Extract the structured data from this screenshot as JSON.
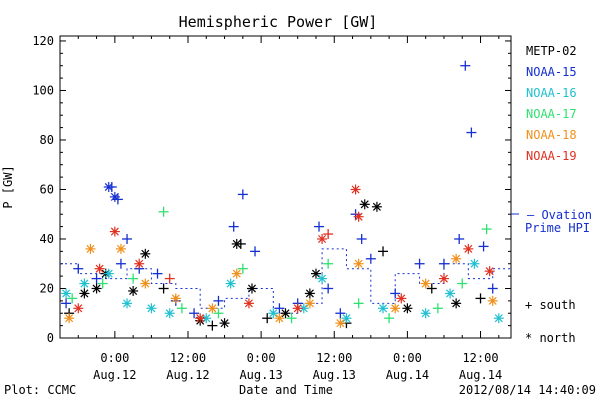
{
  "chart_data": {
    "type": "scatter",
    "title": "Hemispheric Power [GW]",
    "ylabel": "P [GW]",
    "xlabel": "Date and Time",
    "ylim": [
      0,
      122
    ],
    "xlim": [
      "2012-08-11T15:00",
      "2012-08-14T17:00"
    ],
    "y_ticks": [
      0,
      20,
      40,
      60,
      80,
      100,
      120
    ],
    "x_ticks": [
      {
        "time": "2012-08-12T00:00",
        "line1": "0:00",
        "line2": "Aug.12"
      },
      {
        "time": "2012-08-12T12:00",
        "line1": "12:00",
        "line2": "Aug.12"
      },
      {
        "time": "2012-08-13T00:00",
        "line1": "0:00",
        "line2": "Aug.13"
      },
      {
        "time": "2012-08-13T12:00",
        "line1": "12:00",
        "line2": "Aug.13"
      },
      {
        "time": "2012-08-14T00:00",
        "line1": "0:00",
        "line2": "Aug.14"
      },
      {
        "time": "2012-08-14T12:00",
        "line1": "12:00",
        "line2": "Aug.14"
      }
    ],
    "grid": false,
    "legend_position": "right",
    "series": [
      {
        "name": "METP-02",
        "color": "#000000",
        "points": [
          {
            "x": "2012-08-11T16:30",
            "y": 10,
            "m": "+"
          },
          {
            "x": "2012-08-11T19:00",
            "y": 18,
            "m": "*"
          },
          {
            "x": "2012-08-11T21:00",
            "y": 20,
            "m": "*"
          },
          {
            "x": "2012-08-11T22:30",
            "y": 26,
            "m": "*"
          },
          {
            "x": "2012-08-12T03:00",
            "y": 19,
            "m": "*"
          },
          {
            "x": "2012-08-12T05:00",
            "y": 34,
            "m": "*"
          },
          {
            "x": "2012-08-12T08:00",
            "y": 20,
            "m": "+"
          },
          {
            "x": "2012-08-12T14:00",
            "y": 7,
            "m": "*"
          },
          {
            "x": "2012-08-12T16:00",
            "y": 5,
            "m": "+"
          },
          {
            "x": "2012-08-12T18:00",
            "y": 6,
            "m": "*"
          },
          {
            "x": "2012-08-12T20:00",
            "y": 38,
            "m": "*"
          },
          {
            "x": "2012-08-12T20:40",
            "y": 38,
            "m": "+"
          },
          {
            "x": "2012-08-12T22:30",
            "y": 20,
            "m": "*"
          },
          {
            "x": "2012-08-13T01:00",
            "y": 8,
            "m": "+"
          },
          {
            "x": "2012-08-13T04:00",
            "y": 10,
            "m": "*"
          },
          {
            "x": "2012-08-13T08:00",
            "y": 18,
            "m": "*"
          },
          {
            "x": "2012-08-13T09:00",
            "y": 26,
            "m": "*"
          },
          {
            "x": "2012-08-13T14:00",
            "y": 6,
            "m": "+"
          },
          {
            "x": "2012-08-13T17:00",
            "y": 54,
            "m": "*"
          },
          {
            "x": "2012-08-13T19:00",
            "y": 53,
            "m": "*"
          },
          {
            "x": "2012-08-13T20:00",
            "y": 35,
            "m": "+"
          },
          {
            "x": "2012-08-14T00:00",
            "y": 12,
            "m": "*"
          },
          {
            "x": "2012-08-14T04:00",
            "y": 20,
            "m": "+"
          },
          {
            "x": "2012-08-14T08:00",
            "y": 14,
            "m": "*"
          },
          {
            "x": "2012-08-14T12:00",
            "y": 16,
            "m": "+"
          }
        ]
      },
      {
        "name": "NOAA-15",
        "color": "#1530d0",
        "points": [
          {
            "x": "2012-08-11T16:00",
            "y": 14,
            "m": "+"
          },
          {
            "x": "2012-08-11T18:00",
            "y": 28,
            "m": "+"
          },
          {
            "x": "2012-08-11T21:00",
            "y": 24,
            "m": "+"
          },
          {
            "x": "2012-08-11T23:00",
            "y": 61,
            "m": "*"
          },
          {
            "x": "2012-08-11T23:30",
            "y": 61,
            "m": "+"
          },
          {
            "x": "2012-08-12T00:00",
            "y": 57,
            "m": "*"
          },
          {
            "x": "2012-08-12T00:30",
            "y": 56,
            "m": "+"
          },
          {
            "x": "2012-08-12T01:00",
            "y": 30,
            "m": "+"
          },
          {
            "x": "2012-08-12T02:00",
            "y": 40,
            "m": "+"
          },
          {
            "x": "2012-08-12T04:00",
            "y": 28,
            "m": "+"
          },
          {
            "x": "2012-08-12T07:00",
            "y": 26,
            "m": "+"
          },
          {
            "x": "2012-08-12T10:00",
            "y": 15,
            "m": "+"
          },
          {
            "x": "2012-08-12T13:00",
            "y": 10,
            "m": "+"
          },
          {
            "x": "2012-08-12T17:00",
            "y": 15,
            "m": "+"
          },
          {
            "x": "2012-08-12T19:30",
            "y": 45,
            "m": "+"
          },
          {
            "x": "2012-08-12T21:00",
            "y": 58,
            "m": "+"
          },
          {
            "x": "2012-08-12T23:00",
            "y": 35,
            "m": "+"
          },
          {
            "x": "2012-08-13T03:00",
            "y": 12,
            "m": "+"
          },
          {
            "x": "2012-08-13T06:00",
            "y": 14,
            "m": "+"
          },
          {
            "x": "2012-08-13T09:30",
            "y": 45,
            "m": "+"
          },
          {
            "x": "2012-08-13T11:00",
            "y": 20,
            "m": "+"
          },
          {
            "x": "2012-08-13T13:00",
            "y": 10,
            "m": "+"
          },
          {
            "x": "2012-08-13T15:30",
            "y": 50,
            "m": "+"
          },
          {
            "x": "2012-08-13T16:30",
            "y": 40,
            "m": "+"
          },
          {
            "x": "2012-08-13T18:00",
            "y": 32,
            "m": "+"
          },
          {
            "x": "2012-08-13T22:00",
            "y": 18,
            "m": "+"
          },
          {
            "x": "2012-08-14T02:00",
            "y": 30,
            "m": "+"
          },
          {
            "x": "2012-08-14T06:00",
            "y": 30,
            "m": "+"
          },
          {
            "x": "2012-08-14T08:30",
            "y": 40,
            "m": "+"
          },
          {
            "x": "2012-08-14T09:30",
            "y": 110,
            "m": "+"
          },
          {
            "x": "2012-08-14T10:30",
            "y": 83,
            "m": "+"
          },
          {
            "x": "2012-08-14T12:30",
            "y": 37,
            "m": "+"
          },
          {
            "x": "2012-08-14T14:00",
            "y": 20,
            "m": "+"
          }
        ]
      },
      {
        "name": "NOAA-16",
        "color": "#20c0d0",
        "points": [
          {
            "x": "2012-08-11T16:00",
            "y": 18,
            "m": "*"
          },
          {
            "x": "2012-08-11T19:00",
            "y": 22,
            "m": "*"
          },
          {
            "x": "2012-08-11T23:00",
            "y": 26,
            "m": "*"
          },
          {
            "x": "2012-08-12T02:00",
            "y": 14,
            "m": "*"
          },
          {
            "x": "2012-08-12T06:00",
            "y": 12,
            "m": "*"
          },
          {
            "x": "2012-08-12T09:00",
            "y": 10,
            "m": "*"
          },
          {
            "x": "2012-08-12T15:00",
            "y": 8,
            "m": "*"
          },
          {
            "x": "2012-08-12T19:00",
            "y": 22,
            "m": "*"
          },
          {
            "x": "2012-08-13T02:00",
            "y": 10,
            "m": "*"
          },
          {
            "x": "2012-08-13T07:00",
            "y": 12,
            "m": "*"
          },
          {
            "x": "2012-08-13T10:00",
            "y": 24,
            "m": "*"
          },
          {
            "x": "2012-08-13T14:00",
            "y": 8,
            "m": "*"
          },
          {
            "x": "2012-08-13T20:00",
            "y": 12,
            "m": "*"
          },
          {
            "x": "2012-08-14T03:00",
            "y": 10,
            "m": "*"
          },
          {
            "x": "2012-08-14T07:00",
            "y": 18,
            "m": "*"
          },
          {
            "x": "2012-08-14T11:00",
            "y": 30,
            "m": "*"
          },
          {
            "x": "2012-08-14T15:00",
            "y": 8,
            "m": "*"
          }
        ]
      },
      {
        "name": "NOAA-17",
        "color": "#30e070",
        "points": [
          {
            "x": "2012-08-11T17:00",
            "y": 16,
            "m": "+"
          },
          {
            "x": "2012-08-11T22:00",
            "y": 22,
            "m": "+"
          },
          {
            "x": "2012-08-12T03:00",
            "y": 24,
            "m": "+"
          },
          {
            "x": "2012-08-12T08:00",
            "y": 51,
            "m": "+"
          },
          {
            "x": "2012-08-12T11:00",
            "y": 12,
            "m": "+"
          },
          {
            "x": "2012-08-12T17:00",
            "y": 10,
            "m": "+"
          },
          {
            "x": "2012-08-12T21:00",
            "y": 28,
            "m": "+"
          },
          {
            "x": "2012-08-13T05:00",
            "y": 8,
            "m": "+"
          },
          {
            "x": "2012-08-13T11:00",
            "y": 30,
            "m": "+"
          },
          {
            "x": "2012-08-13T16:00",
            "y": 14,
            "m": "+"
          },
          {
            "x": "2012-08-13T21:00",
            "y": 8,
            "m": "+"
          },
          {
            "x": "2012-08-14T05:00",
            "y": 12,
            "m": "+"
          },
          {
            "x": "2012-08-14T09:00",
            "y": 22,
            "m": "+"
          },
          {
            "x": "2012-08-14T13:00",
            "y": 44,
            "m": "+"
          }
        ]
      },
      {
        "name": "NOAA-18",
        "color": "#f0901a",
        "points": [
          {
            "x": "2012-08-11T16:30",
            "y": 8,
            "m": "*"
          },
          {
            "x": "2012-08-11T20:00",
            "y": 36,
            "m": "*"
          },
          {
            "x": "2012-08-12T01:00",
            "y": 36,
            "m": "*"
          },
          {
            "x": "2012-08-12T05:00",
            "y": 22,
            "m": "*"
          },
          {
            "x": "2012-08-12T10:00",
            "y": 16,
            "m": "*"
          },
          {
            "x": "2012-08-12T16:00",
            "y": 12,
            "m": "*"
          },
          {
            "x": "2012-08-12T20:00",
            "y": 26,
            "m": "*"
          },
          {
            "x": "2012-08-13T03:00",
            "y": 8,
            "m": "*"
          },
          {
            "x": "2012-08-13T08:00",
            "y": 14,
            "m": "*"
          },
          {
            "x": "2012-08-13T13:00",
            "y": 6,
            "m": "*"
          },
          {
            "x": "2012-08-13T16:00",
            "y": 30,
            "m": "*"
          },
          {
            "x": "2012-08-13T22:00",
            "y": 12,
            "m": "*"
          },
          {
            "x": "2012-08-14T03:00",
            "y": 22,
            "m": "*"
          },
          {
            "x": "2012-08-14T08:00",
            "y": 32,
            "m": "*"
          },
          {
            "x": "2012-08-14T14:00",
            "y": 15,
            "m": "*"
          }
        ]
      },
      {
        "name": "NOAA-19",
        "color": "#e03020",
        "points": [
          {
            "x": "2012-08-11T18:00",
            "y": 12,
            "m": "*"
          },
          {
            "x": "2012-08-11T21:30",
            "y": 28,
            "m": "*"
          },
          {
            "x": "2012-08-12T00:00",
            "y": 43,
            "m": "*"
          },
          {
            "x": "2012-08-12T04:00",
            "y": 30,
            "m": "*"
          },
          {
            "x": "2012-08-12T09:00",
            "y": 24,
            "m": "+"
          },
          {
            "x": "2012-08-12T14:00",
            "y": 8,
            "m": "*"
          },
          {
            "x": "2012-08-12T22:00",
            "y": 14,
            "m": "*"
          },
          {
            "x": "2012-08-13T06:00",
            "y": 12,
            "m": "*"
          },
          {
            "x": "2012-08-13T10:00",
            "y": 40,
            "m": "*"
          },
          {
            "x": "2012-08-13T11:00",
            "y": 42,
            "m": "+"
          },
          {
            "x": "2012-08-13T15:30",
            "y": 60,
            "m": "*"
          },
          {
            "x": "2012-08-13T16:00",
            "y": 49,
            "m": "*"
          },
          {
            "x": "2012-08-13T23:00",
            "y": 16,
            "m": "*"
          },
          {
            "x": "2012-08-14T06:00",
            "y": 24,
            "m": "*"
          },
          {
            "x": "2012-08-14T10:00",
            "y": 36,
            "m": "*"
          },
          {
            "x": "2012-08-14T13:30",
            "y": 27,
            "m": "*"
          }
        ]
      },
      {
        "name": "Ovation Prime HPI",
        "color": "#1530d0",
        "style": "dashed-step",
        "points": [
          {
            "x": "2012-08-11T15:00",
            "y": 30
          },
          {
            "x": "2012-08-11T18:00",
            "y": 26
          },
          {
            "x": "2012-08-11T22:00",
            "y": 24
          },
          {
            "x": "2012-08-12T02:00",
            "y": 28
          },
          {
            "x": "2012-08-12T06:00",
            "y": 22
          },
          {
            "x": "2012-08-12T10:00",
            "y": 20
          },
          {
            "x": "2012-08-12T14:00",
            "y": 12
          },
          {
            "x": "2012-08-12T18:00",
            "y": 16
          },
          {
            "x": "2012-08-12T22:00",
            "y": 20
          },
          {
            "x": "2012-08-13T02:00",
            "y": 10
          },
          {
            "x": "2012-08-13T06:00",
            "y": 14
          },
          {
            "x": "2012-08-13T10:00",
            "y": 36
          },
          {
            "x": "2012-08-13T14:00",
            "y": 28
          },
          {
            "x": "2012-08-13T18:00",
            "y": 14
          },
          {
            "x": "2012-08-13T22:00",
            "y": 26
          },
          {
            "x": "2012-08-14T02:00",
            "y": 22
          },
          {
            "x": "2012-08-14T06:00",
            "y": 30
          },
          {
            "x": "2012-08-14T10:00",
            "y": 24
          },
          {
            "x": "2012-08-14T14:00",
            "y": 28
          },
          {
            "x": "2012-08-14T17:00",
            "y": 28
          }
        ]
      }
    ],
    "legend": {
      "entries": [
        "METP-02",
        "NOAA-15",
        "NOAA-16",
        "NOAA-17",
        "NOAA-18",
        "NOAA-19"
      ],
      "ovation_label_line1": "— Ovation",
      "ovation_label_line2": "Prime HPI",
      "south_label": "+ south",
      "north_label": "* north"
    }
  },
  "footer": {
    "plot_source": "Plot: CCMC",
    "timestamp": "2012/08/14 14:40:09"
  }
}
